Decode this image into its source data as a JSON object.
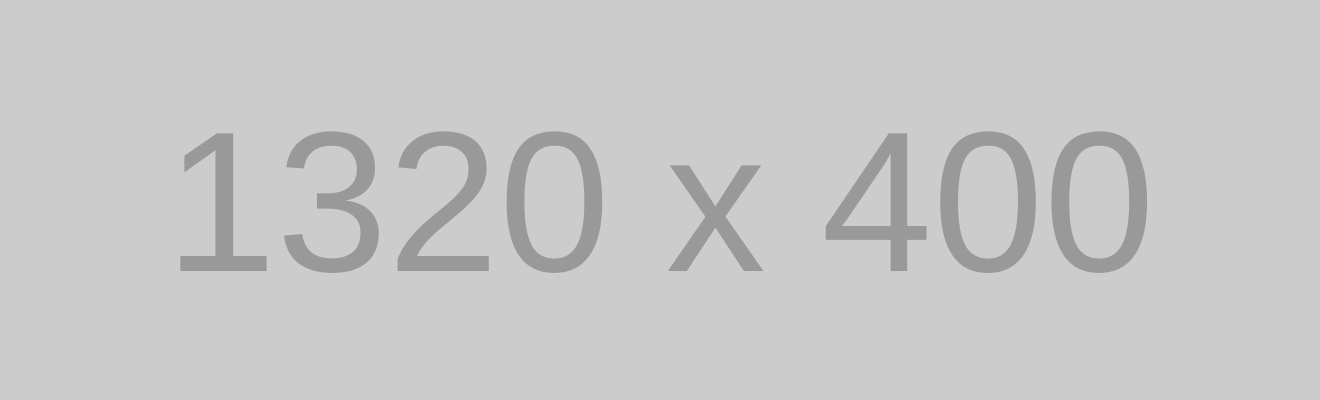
{
  "placeholder": {
    "text": "1320 x 400",
    "background_color": "#cccccc",
    "text_color": "#999999"
  }
}
